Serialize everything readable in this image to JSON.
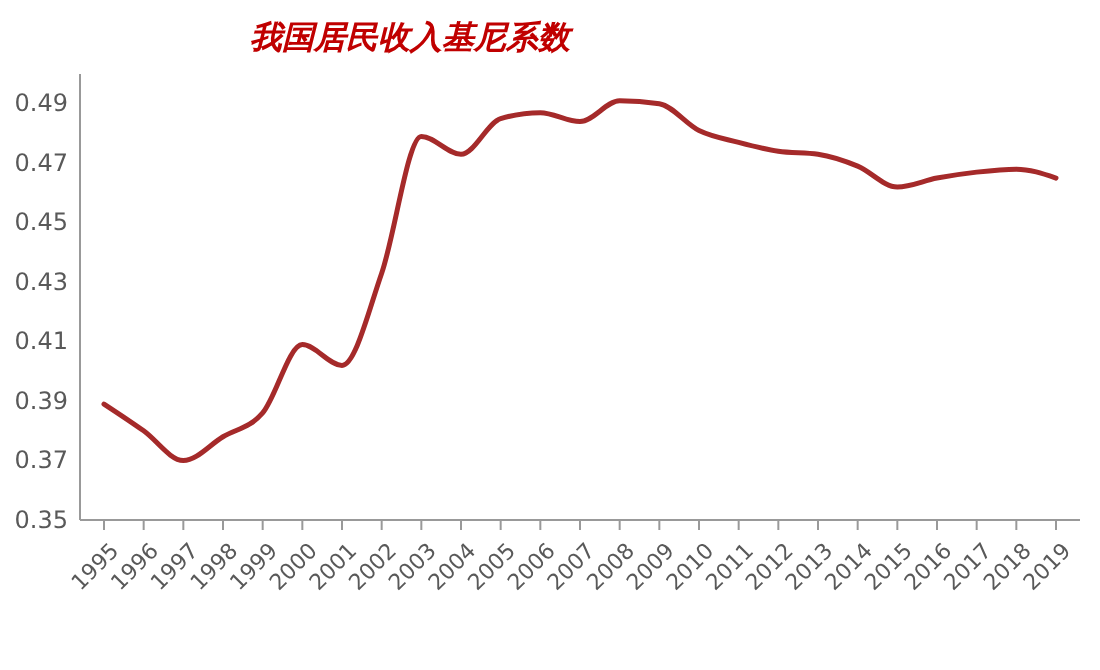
{
  "chart_data": {
    "type": "line",
    "title": "我国居民收入基尼系数",
    "categories": [
      "1995",
      "1996",
      "1997",
      "1998",
      "1999",
      "2000",
      "2001",
      "2002",
      "2003",
      "2004",
      "2005",
      "2006",
      "2007",
      "2008",
      "2009",
      "2010",
      "2011",
      "2012",
      "2013",
      "2014",
      "2015",
      "2016",
      "2017",
      "2018",
      "2019"
    ],
    "series": [
      {
        "color": "#a52a2a",
        "values": [
          0.389,
          0.38,
          0.37,
          0.378,
          0.386,
          0.409,
          0.402,
          0.433,
          0.479,
          0.473,
          0.485,
          0.487,
          0.484,
          0.491,
          0.49,
          0.481,
          0.477,
          0.474,
          0.473,
          0.469,
          0.462,
          0.465,
          0.467,
          0.468,
          0.465
        ]
      }
    ],
    "ylim": [
      0.35,
      0.5
    ],
    "yticks": [
      {
        "value": 0.35,
        "label": "0.35"
      },
      {
        "value": 0.37,
        "label": "0.37"
      },
      {
        "value": 0.39,
        "label": "0.39"
      },
      {
        "value": 0.41,
        "label": "0.41"
      },
      {
        "value": 0.43,
        "label": "0.43"
      },
      {
        "value": 0.45,
        "label": "0.45"
      },
      {
        "value": 0.47,
        "label": "0.47"
      },
      {
        "value": 0.49,
        "label": "0.49"
      }
    ],
    "grid": false,
    "marker": "none",
    "line_style": "solid"
  }
}
